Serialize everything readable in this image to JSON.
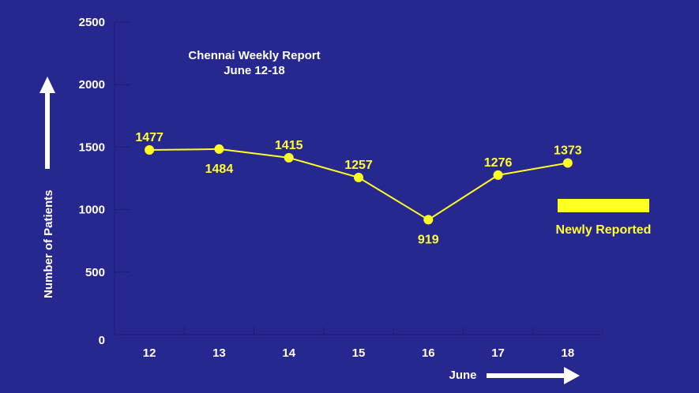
{
  "chart_data": {
    "type": "line",
    "title": "Chennai Weekly Report",
    "subtitle": "June 12-18",
    "xlabel": "June",
    "ylabel": "Number of Patients",
    "categories": [
      "12",
      "13",
      "14",
      "15",
      "16",
      "17",
      "18"
    ],
    "series": [
      {
        "name": "Newly Reported",
        "values": [
          1477,
          1484,
          1415,
          1257,
          919,
          1276,
          1373
        ],
        "color": "#ffff22"
      }
    ],
    "ylim": [
      0,
      2500
    ],
    "yticks": [
      0,
      500,
      1000,
      1500,
      2000,
      2500
    ],
    "grid": false,
    "legend_position": "right",
    "background": "#27288f"
  }
}
